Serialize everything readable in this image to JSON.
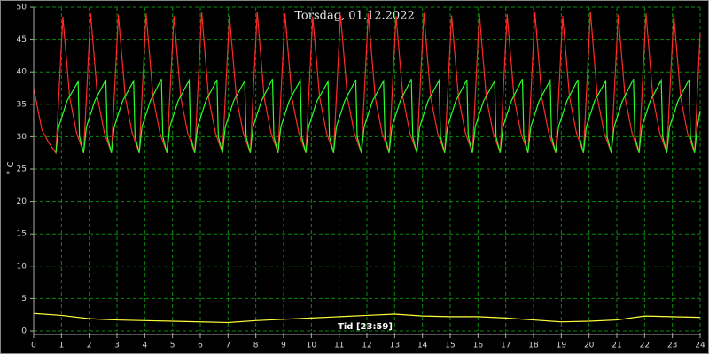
{
  "chart_data": {
    "type": "line",
    "title": "Torsdag, 01.12.2022",
    "ylabel": "° C",
    "xlabel": "Tid [23:59]",
    "xlim": [
      0,
      24
    ],
    "xticks": [
      0,
      1,
      2,
      3,
      4,
      5,
      6,
      7,
      8,
      9,
      10,
      11,
      12,
      13,
      14,
      15,
      16,
      17,
      18,
      19,
      20,
      21,
      22,
      23,
      24
    ],
    "ylim": [
      0,
      50
    ],
    "yticks": [
      0,
      5,
      10,
      15,
      20,
      25,
      30,
      35,
      40,
      45,
      50
    ],
    "grid": true,
    "series": [
      {
        "color": "#ff2a2a",
        "x": [
          0,
          0.3,
          0.55,
          0.8,
          1.05,
          1.3,
          1.55,
          1.8,
          2.05,
          2.3,
          2.55,
          2.8,
          3.05,
          3.3,
          3.55,
          3.8,
          4.05,
          4.3,
          4.55,
          4.8,
          5.05,
          5.3,
          5.55,
          5.8,
          6.05,
          6.3,
          6.55,
          6.8,
          7.05,
          7.3,
          7.55,
          7.8,
          8.05,
          8.3,
          8.55,
          8.8,
          9.05,
          9.3,
          9.55,
          9.8,
          10.05,
          10.3,
          10.55,
          10.8,
          11.05,
          11.3,
          11.55,
          11.8,
          12.05,
          12.3,
          12.55,
          12.8,
          13.05,
          13.3,
          13.55,
          13.8,
          14.05,
          14.3,
          14.55,
          14.8,
          15.05,
          15.3,
          15.55,
          15.8,
          16.05,
          16.3,
          16.55,
          16.8,
          17.05,
          17.3,
          17.55,
          17.8,
          18.05,
          18.3,
          18.55,
          18.8,
          19.05,
          19.3,
          19.55,
          19.8,
          20.05,
          20.3,
          20.55,
          20.8,
          21.05,
          21.3,
          21.55,
          21.8,
          22.05,
          22.3,
          22.55,
          22.8,
          23.05,
          23.3,
          23.55,
          23.8,
          24
        ],
        "values": [
          37.5,
          31,
          29,
          27.5,
          48.5,
          36,
          30.5,
          27.5,
          49,
          36,
          30.5,
          27.5,
          48.8,
          36,
          30.5,
          27.5,
          49,
          36,
          30.5,
          27.5,
          48.6,
          36,
          30.5,
          27.5,
          49.2,
          36,
          30.5,
          27.5,
          48.7,
          36,
          30.5,
          27.5,
          49.3,
          36,
          30.5,
          27.5,
          49,
          36,
          30.5,
          27.5,
          48.5,
          36,
          30.5,
          27.5,
          48.8,
          36,
          30.5,
          27.5,
          49,
          36,
          30.5,
          27.5,
          48.6,
          36,
          30.5,
          27.5,
          49.1,
          36,
          30.5,
          27.5,
          48.7,
          36,
          30.5,
          27.5,
          49,
          36,
          30.5,
          27.5,
          48.9,
          36,
          30.5,
          27.5,
          49.2,
          36,
          30.5,
          27.5,
          48.6,
          36,
          30.5,
          27.5,
          49.3,
          36,
          30.5,
          27.5,
          48.8,
          36,
          30.5,
          27.5,
          49,
          36,
          30.5,
          27.5,
          48.9,
          36,
          30.5,
          27.5,
          46
        ]
      },
      {
        "color": "#2aff2a",
        "x": [
          0.8,
          0.9,
          1.2,
          1.6,
          1.65,
          1.8,
          1.9,
          2.2,
          2.6,
          2.65,
          2.8,
          2.9,
          3.2,
          3.6,
          3.65,
          3.8,
          3.9,
          4.2,
          4.6,
          4.65,
          4.8,
          4.9,
          5.2,
          5.6,
          5.65,
          5.8,
          5.9,
          6.2,
          6.6,
          6.65,
          6.8,
          6.9,
          7.2,
          7.6,
          7.65,
          7.8,
          7.9,
          8.2,
          8.6,
          8.65,
          8.8,
          8.9,
          9.2,
          9.6,
          9.65,
          9.8,
          9.9,
          10.2,
          10.6,
          10.65,
          10.8,
          10.9,
          11.2,
          11.6,
          11.65,
          11.8,
          11.9,
          12.2,
          12.6,
          12.65,
          12.8,
          12.9,
          13.2,
          13.6,
          13.65,
          13.8,
          13.9,
          14.2,
          14.6,
          14.65,
          14.8,
          14.9,
          15.2,
          15.6,
          15.65,
          15.8,
          15.9,
          16.2,
          16.6,
          16.65,
          16.8,
          16.9,
          17.2,
          17.6,
          17.65,
          17.8,
          17.9,
          18.2,
          18.6,
          18.65,
          18.8,
          18.9,
          19.2,
          19.6,
          19.65,
          19.8,
          19.9,
          20.2,
          20.6,
          20.65,
          20.8,
          20.9,
          21.2,
          21.6,
          21.65,
          21.8,
          21.9,
          22.2,
          22.6,
          22.65,
          22.8,
          22.9,
          23.2,
          23.6,
          23.65,
          23.8,
          23.9,
          24
        ],
        "values": [
          27.5,
          31.5,
          35.5,
          38.5,
          30,
          27.5,
          31.5,
          35.5,
          38.8,
          30,
          27.5,
          31.5,
          35.5,
          38.6,
          30,
          27.5,
          31.5,
          35.5,
          38.9,
          30,
          27.5,
          31.5,
          35.5,
          38.7,
          30,
          27.5,
          31.5,
          35.5,
          38.8,
          30,
          27.5,
          31.5,
          35.5,
          38.6,
          30,
          27.5,
          31.5,
          35.5,
          38.9,
          30,
          27.5,
          31.5,
          35.5,
          38.7,
          30,
          27.5,
          31.5,
          35.5,
          38.5,
          30,
          27.5,
          31.5,
          35.5,
          38.8,
          30,
          27.5,
          31.5,
          35.5,
          38.6,
          30,
          27.5,
          31.5,
          35.5,
          38.9,
          30,
          27.5,
          31.5,
          35.5,
          38.7,
          30,
          27.5,
          31.5,
          35.5,
          38.8,
          30,
          27.5,
          31.5,
          35.5,
          38.6,
          30,
          27.5,
          31.5,
          35.5,
          38.9,
          30,
          27.5,
          31.5,
          35.5,
          38.7,
          30,
          27.5,
          31.5,
          35.5,
          38.8,
          30,
          27.5,
          31.5,
          35.5,
          38.6,
          30,
          27.5,
          31.5,
          35.5,
          38.9,
          30,
          27.5,
          31.5,
          35.5,
          38.7,
          30,
          27.5,
          31.5,
          35.5,
          38.8,
          30,
          27.5,
          31.5,
          34
        ]
      },
      {
        "color": "#ffff3c",
        "x": [
          0,
          1,
          2,
          3,
          4,
          5,
          6,
          7,
          8,
          9,
          10,
          11,
          12,
          13,
          14,
          15,
          16,
          17,
          18,
          19,
          20,
          21,
          22,
          23,
          24
        ],
        "values": [
          2.7,
          2.4,
          1.9,
          1.7,
          1.6,
          1.5,
          1.4,
          1.3,
          1.6,
          1.8,
          2.0,
          2.2,
          2.4,
          2.6,
          2.3,
          2.2,
          2.2,
          2.0,
          1.7,
          1.4,
          1.5,
          1.7,
          2.3,
          2.2,
          2.1
        ]
      }
    ]
  }
}
